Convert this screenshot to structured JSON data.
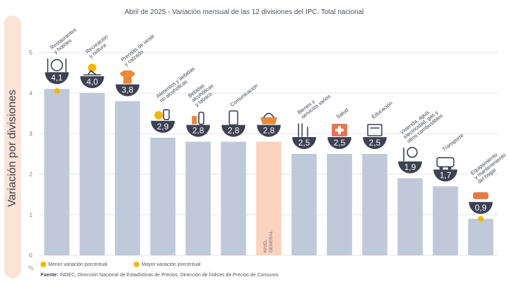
{
  "title": {
    "date": "Abril de 2025",
    "text": " - Variación mensual de las 12 divisiones del IPC. Total nacional"
  },
  "side_label": "Variación por divisiones",
  "unit_symbol": "%",
  "legend": {
    "min": {
      "label": "Menor variación porcentual",
      "color": "#f2b705"
    },
    "max": {
      "label": "Mayor variación porcentual",
      "color": "#f2b705"
    }
  },
  "source": {
    "prefix": "Fuente:",
    "text": " INDEC, Dirección Nacional de Estadísticas de Precios, Dirección de Índices de Precios de Consumo."
  },
  "colors": {
    "bar": "#c0c9d9",
    "bar_highlight": "#fbd3bd",
    "badge": "#3d4152",
    "grid": "#e3e6ee",
    "marker": "#f2b705"
  },
  "chart_data": {
    "type": "bar",
    "title": "Abril de 2025 - Variación mensual de las 12 divisiones del IPC. Total nacional",
    "ylabel": "Variación por divisiones",
    "yunit": "%",
    "ylim": [
      0,
      5
    ],
    "yticks": [
      0,
      1,
      2,
      3,
      4,
      5
    ],
    "grid": true,
    "categories": [
      {
        "label": [
          "Restaurantes",
          "y hoteles"
        ],
        "value": 4.1,
        "display": "4,1",
        "icon": "utensils-icon",
        "marker": "max"
      },
      {
        "label": [
          "Recreación",
          "y cultura"
        ],
        "value": 4.0,
        "display": "4,0",
        "icon": "sun-icon"
      },
      {
        "label": [
          "Prendas de vestir",
          "y calzado"
        ],
        "value": 3.8,
        "display": "3,8",
        "icon": "shirt-icon"
      },
      {
        "label": [
          "Alimentos y bebidas",
          "no alcohólicas"
        ],
        "value": 2.9,
        "display": "2,9",
        "icon": "food-icon"
      },
      {
        "label": [
          "Bebidas",
          "alcohólicas",
          "y tabaco"
        ],
        "value": 2.8,
        "display": "2,8",
        "icon": "bottle-icon"
      },
      {
        "label": [
          "Comunicación"
        ],
        "value": 2.8,
        "display": "2,8",
        "icon": "phone-icon"
      },
      {
        "label": [],
        "value": 2.8,
        "display": "2,8",
        "icon": "basket-icon",
        "highlight": true,
        "inner_label": [
          "NIVEL",
          "GENERAL"
        ]
      },
      {
        "label": [
          "Bienes y",
          "servicios varios"
        ],
        "value": 2.5,
        "display": "2,5",
        "icon": "comb-icon"
      },
      {
        "label": [
          "Salud"
        ],
        "value": 2.5,
        "display": "2,5",
        "icon": "health-icon"
      },
      {
        "label": [
          "Educación"
        ],
        "value": 2.5,
        "display": "2,5",
        "icon": "book-icon"
      },
      {
        "label": [
          "Vivienda, agua,",
          "electricidad, gas y",
          "otros combustibles"
        ],
        "value": 1.9,
        "display": "1,9",
        "icon": "bulb-icon"
      },
      {
        "label": [
          "Transporte"
        ],
        "value": 1.7,
        "display": "1,7",
        "icon": "bus-icon"
      },
      {
        "label": [
          "Equipamiento",
          "y mantenimiento",
          "del hogar"
        ],
        "value": 0.9,
        "display": "0,9",
        "icon": "sofa-icon",
        "marker": "min"
      }
    ]
  }
}
